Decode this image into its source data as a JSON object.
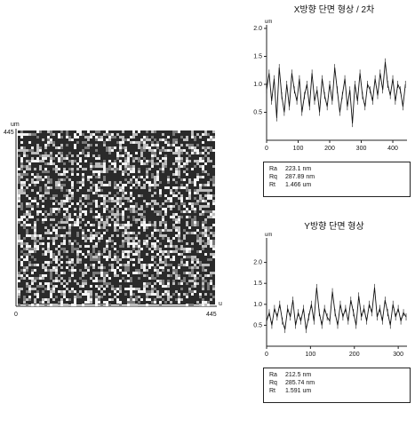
{
  "image_map": {
    "y_unit": "um",
    "x_unit": "um",
    "y_label": "445",
    "x_label_start": "0",
    "x_label_end": "445"
  },
  "chart_data": [
    {
      "type": "line",
      "title": "X방향 단면 형상 / 2차",
      "ylabel": "um",
      "ylim": [
        0,
        2.0
      ],
      "xlim": [
        0,
        445
      ],
      "yticks": [
        "2.0",
        "1.5",
        "1.0",
        "0.5"
      ],
      "xticks": [
        "0",
        "100",
        "200",
        "300",
        "400"
      ],
      "x": [
        0,
        8,
        16,
        24,
        32,
        40,
        48,
        56,
        64,
        72,
        80,
        88,
        96,
        104,
        112,
        120,
        128,
        136,
        144,
        152,
        160,
        168,
        176,
        184,
        192,
        200,
        208,
        216,
        224,
        232,
        240,
        248,
        256,
        264,
        272,
        280,
        288,
        296,
        304,
        312,
        320,
        328,
        336,
        344,
        352,
        360,
        368,
        376,
        384,
        392,
        400,
        408,
        416,
        424,
        432,
        440
      ],
      "values": [
        0.9,
        1.2,
        0.7,
        1.1,
        0.4,
        1.3,
        0.8,
        0.5,
        1.0,
        0.6,
        1.2,
        0.9,
        0.7,
        1.1,
        0.5,
        0.8,
        1.0,
        0.6,
        1.2,
        0.7,
        0.9,
        0.5,
        1.1,
        0.8,
        0.6,
        1.0,
        0.7,
        1.3,
        0.9,
        0.5,
        0.8,
        1.1,
        0.6,
        0.9,
        0.3,
        1.0,
        0.7,
        1.2,
        0.8,
        0.6,
        1.0,
        0.9,
        0.7,
        1.1,
        0.8,
        1.2,
        0.9,
        1.4,
        1.0,
        0.8,
        1.1,
        0.7,
        1.0,
        0.9,
        0.6,
        1.0
      ],
      "stats": [
        {
          "key": "Ra",
          "value": "223.1 nm"
        },
        {
          "key": "Rq",
          "value": "287.89 nm"
        },
        {
          "key": "Rt",
          "value": "1.466 um"
        }
      ]
    },
    {
      "type": "line",
      "title": "Y방향 단면 형상",
      "ylabel": "um",
      "ylim": [
        0,
        2.5
      ],
      "xlim": [
        0,
        320
      ],
      "yticks": [
        "2.0",
        "1.5",
        "1.0",
        "0.5"
      ],
      "xticks": [
        "0",
        "100",
        "200",
        "300"
      ],
      "x": [
        0,
        6,
        12,
        18,
        24,
        30,
        36,
        42,
        48,
        54,
        60,
        66,
        72,
        78,
        84,
        90,
        96,
        102,
        108,
        114,
        120,
        126,
        132,
        138,
        144,
        150,
        156,
        162,
        168,
        174,
        180,
        186,
        192,
        198,
        204,
        210,
        216,
        222,
        228,
        234,
        240,
        246,
        252,
        258,
        264,
        270,
        276,
        282,
        288,
        294,
        300,
        306,
        312,
        318
      ],
      "values": [
        0.6,
        0.8,
        0.5,
        0.9,
        0.7,
        1.0,
        0.6,
        0.4,
        0.9,
        0.7,
        1.1,
        0.5,
        0.8,
        0.6,
        0.9,
        0.4,
        0.7,
        1.0,
        0.6,
        1.4,
        0.8,
        0.5,
        0.9,
        0.7,
        0.6,
        1.3,
        0.8,
        0.5,
        1.0,
        0.7,
        0.9,
        0.6,
        1.1,
        0.8,
        0.5,
        1.2,
        0.7,
        0.9,
        0.6,
        1.0,
        0.8,
        1.4,
        0.7,
        0.9,
        0.6,
        1.1,
        0.8,
        0.5,
        1.0,
        0.7,
        0.9,
        0.6,
        0.8,
        0.7
      ],
      "stats": [
        {
          "key": "Ra",
          "value": "212.5 nm"
        },
        {
          "key": "Rq",
          "value": "285.74 nm"
        },
        {
          "key": "Rt",
          "value": "1.591 um"
        }
      ]
    }
  ]
}
